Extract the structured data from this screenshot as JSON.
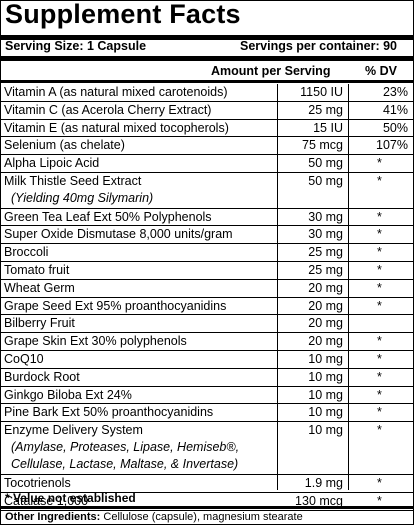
{
  "title": "Supplement Facts",
  "serving_size": "Serving Size: 1 Capsule",
  "servings_per_container": "Servings per container: 90",
  "header": {
    "amount": "Amount per Serving",
    "dv": "% DV"
  },
  "rows": [
    {
      "name": "Vitamin A (as natural mixed carotenoids)",
      "amount": "1150 IU",
      "dv": "23%"
    },
    {
      "name": "Vitamin C (as Acerola Cherry Extract)",
      "amount": "25 mg",
      "dv": "41%"
    },
    {
      "name": "Vitamin E (as natural mixed tocopherols)",
      "amount": "15 IU",
      "dv": "50%"
    },
    {
      "name": "Selenium (as chelate)",
      "amount": "75 mcg",
      "dv": "107%"
    },
    {
      "name": "Alpha Lipoic Acid",
      "amount": "50 mg",
      "dv": "*"
    },
    {
      "name": "Milk Thistle Seed Extract",
      "sub": "(Yielding 40mg Silymarin)",
      "amount": "50 mg",
      "dv": "*"
    },
    {
      "name": "Green Tea Leaf Ext 50% Polyphenols",
      "amount": "30 mg",
      "dv": "*"
    },
    {
      "name": "Super Oxide Dismutase 8,000 units/gram",
      "amount": "30 mg",
      "dv": "*"
    },
    {
      "name": "Broccoli",
      "amount": "25 mg",
      "dv": "*"
    },
    {
      "name": "Tomato fruit",
      "amount": "25 mg",
      "dv": "*"
    },
    {
      "name": "Wheat Germ",
      "amount": "20 mg",
      "dv": "*"
    },
    {
      "name": "Grape Seed Ext 95% proanthocyanidins",
      "amount": "20 mg",
      "dv": "*"
    },
    {
      "name": "Bilberry Fruit",
      "amount": "20 mg",
      "dv": ""
    },
    {
      "name": "Grape Skin Ext 30% polyphenols",
      "amount": "20 mg",
      "dv": "*"
    },
    {
      "name": "CoQ10",
      "amount": "10 mg",
      "dv": "*"
    },
    {
      "name": "Burdock Root",
      "amount": "10 mg",
      "dv": "*"
    },
    {
      "name": "Ginkgo Biloba Ext 24%",
      "amount": "10 mg",
      "dv": "*"
    },
    {
      "name": "Pine Bark Ext 50% proanthocyanidins",
      "amount": "10 mg",
      "dv": "*"
    },
    {
      "name": "Enzyme Delivery System",
      "sub": "(Amylase, Proteases, Lipase, Hemiseb®,",
      "sub2": "Cellulase, Lactase, Maltase, & Invertase)",
      "amount": "10 mg",
      "dv": "*"
    },
    {
      "name": "Tocotrienols",
      "amount": "1.9 mg",
      "dv": "*"
    },
    {
      "name": "Catalase 1,000",
      "amount": "130 mcg",
      "dv": "*"
    }
  ],
  "footnote": "* Value not established",
  "other_label": "Other Ingredients:",
  "other_text": " Cellulose (capsule), magnesium stearate"
}
